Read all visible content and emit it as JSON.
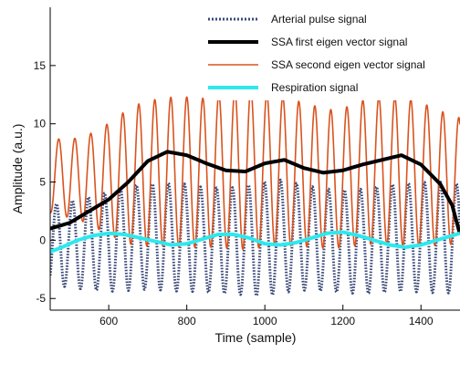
{
  "chart_data": {
    "type": "line",
    "title": "",
    "xlabel": "Time (sample)",
    "ylabel": "Amplitude (a.u.)",
    "xlim": [
      450,
      1500
    ],
    "ylim": [
      -6,
      20
    ],
    "x_ticks": [
      600,
      800,
      1000,
      1200,
      1400
    ],
    "y_ticks": [
      -5,
      0,
      5,
      10,
      15
    ],
    "x_tick_labels": [
      "600",
      "800",
      "1000",
      "1200",
      "1400"
    ],
    "y_tick_labels": [
      "-5",
      "0",
      "5",
      "10",
      "15"
    ],
    "grid": false,
    "legend_position": "top-right",
    "series": [
      {
        "name": "Arterial pulse signal",
        "color": "#3b4a7a",
        "style": "dotted",
        "period": 41,
        "phase_peak_x": 466,
        "amplitude_upper": [
          3.0,
          3.3,
          3.6,
          3.9,
          4.4,
          4.7,
          4.8,
          4.9,
          4.9,
          4.6,
          4.5,
          4.5,
          4.7,
          5.0,
          5.2,
          4.9,
          4.6,
          4.4,
          4.3,
          4.4,
          4.6,
          4.8,
          4.9,
          5.0,
          5.0,
          4.8
        ],
        "amplitude_lower": [
          -3.8,
          -4.0,
          -4.2,
          -4.3,
          -4.4,
          -4.3,
          -4.2,
          -4.3,
          -4.4,
          -4.4,
          -4.5,
          -4.6,
          -4.7,
          -4.8,
          -4.6,
          -4.3,
          -4.3,
          -4.4,
          -4.5,
          -4.6,
          -4.5,
          -4.4,
          -4.4,
          -4.5,
          -4.5,
          -4.6
        ]
      },
      {
        "name": "SSA first eigen vector signal",
        "color": "#000000",
        "style": "solid",
        "x": [
          450,
          500,
          550,
          600,
          650,
          700,
          750,
          800,
          850,
          900,
          950,
          1000,
          1050,
          1100,
          1150,
          1200,
          1250,
          1300,
          1350,
          1400,
          1450,
          1480,
          1500
        ],
        "y": [
          1.0,
          1.5,
          2.5,
          3.5,
          5.0,
          6.8,
          7.6,
          7.3,
          6.6,
          6.0,
          5.9,
          6.6,
          6.9,
          6.2,
          5.8,
          6.0,
          6.5,
          6.9,
          7.3,
          6.5,
          4.8,
          3.0,
          0.5
        ]
      },
      {
        "name": "SSA second eigen vector signal",
        "color": "#d9531e",
        "style": "solid",
        "period": 41,
        "phase_peak_x": 472,
        "amplitude_upper": [
          8.8,
          8.6,
          8.9,
          9.5,
          10.5,
          11.5,
          12.0,
          12.2,
          12.4,
          12.1,
          12.4,
          12.8,
          13.1,
          12.6,
          12.4,
          12.0,
          11.6,
          11.2,
          11.4,
          12.0,
          12.3,
          12.3,
          12.1,
          11.6,
          11.0,
          10.5
        ],
        "amplitude_lower": [
          2.4,
          2.0,
          1.6,
          0.9,
          0.2,
          -0.4,
          -0.5,
          -0.5,
          -0.6,
          -0.6,
          -0.6,
          -0.7,
          -0.8,
          -0.6,
          -0.4,
          -0.5,
          -0.6,
          -0.7,
          -0.6,
          -0.4,
          -0.3,
          -0.4,
          -0.5,
          -0.5,
          -0.4,
          -0.3
        ]
      },
      {
        "name": "Respiration signal",
        "color": "#2ee8ee",
        "style": "solid",
        "x": [
          450,
          480,
          520,
          560,
          600,
          640,
          680,
          720,
          760,
          800,
          840,
          880,
          920,
          960,
          1000,
          1040,
          1080,
          1120,
          1160,
          1200,
          1240,
          1280,
          1320,
          1360,
          1400,
          1440,
          1480,
          1500
        ],
        "y": [
          -1.0,
          -0.6,
          0.0,
          0.4,
          0.6,
          0.5,
          0.2,
          -0.1,
          -0.4,
          -0.3,
          0.1,
          0.5,
          0.5,
          0.2,
          -0.3,
          -0.4,
          -0.2,
          0.2,
          0.6,
          0.7,
          0.4,
          0.0,
          -0.4,
          -0.6,
          -0.4,
          0.0,
          0.4,
          0.6
        ]
      }
    ]
  }
}
